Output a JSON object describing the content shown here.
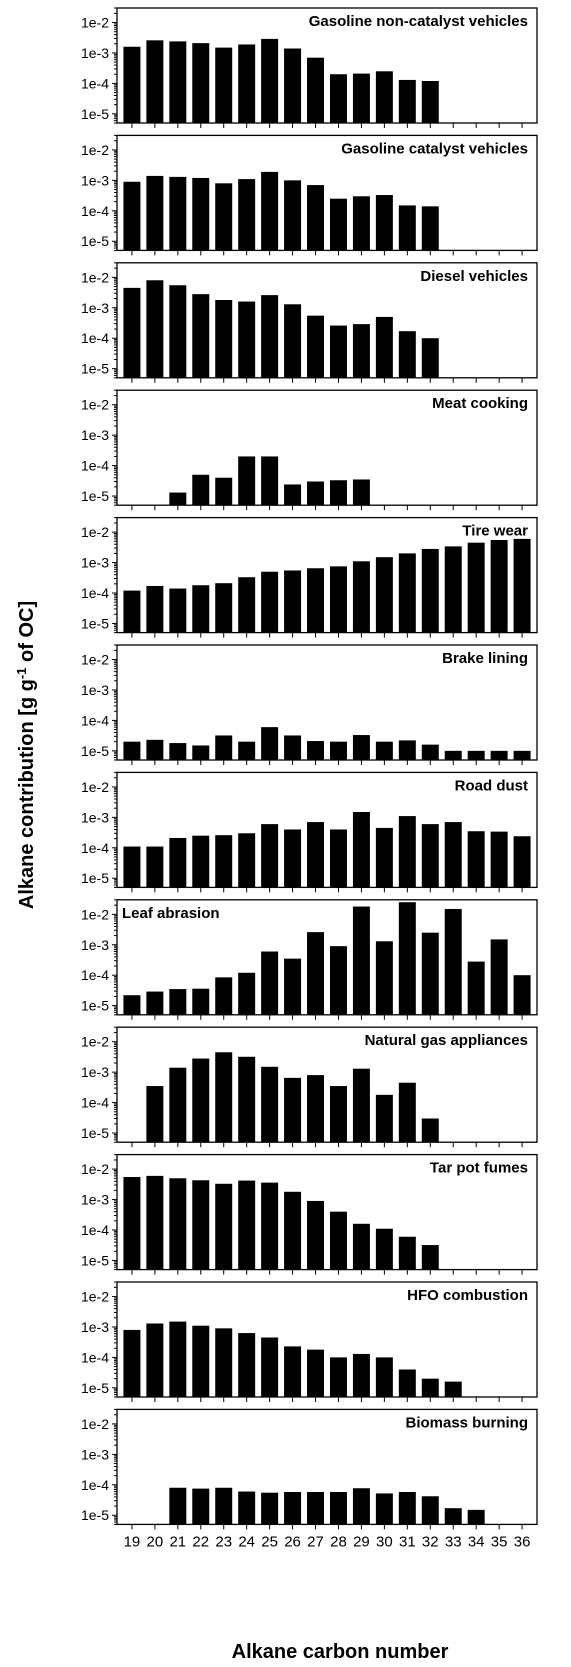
{
  "figure": {
    "ylabel_parts": [
      "Alkane contribution [g g",
      "-1",
      " of OC]"
    ],
    "xlabel": "Alkane carbon number"
  },
  "chart_data": {
    "type": "bar",
    "categories": [
      "19",
      "20",
      "21",
      "22",
      "23",
      "24",
      "25",
      "26",
      "27",
      "28",
      "29",
      "30",
      "31",
      "32",
      "33",
      "34",
      "35",
      "36"
    ],
    "y_scale": "log",
    "ylim": [
      5e-06,
      0.03
    ],
    "ytick_values": [
      1e-05,
      0.0001,
      0.001,
      0.01
    ],
    "ytick_labels": [
      "1e-5",
      "1e-4",
      "1e-3",
      "1e-2"
    ],
    "grid": false,
    "panels": [
      {
        "title": "Gasoline non-catalyst vehicles",
        "title_position": "top-right",
        "values": [
          0.0016,
          0.0026,
          0.0024,
          0.0021,
          0.0015,
          0.0019,
          0.0029,
          0.0014,
          0.0007,
          0.0002,
          0.00021,
          0.00025,
          0.00013,
          0.00012,
          null,
          null,
          null,
          null
        ]
      },
      {
        "title": "Gasoline catalyst vehicles",
        "title_position": "top-right",
        "values": [
          0.0009,
          0.0014,
          0.0013,
          0.0012,
          0.0008,
          0.0011,
          0.0019,
          0.001,
          0.0007,
          0.00025,
          0.0003,
          0.00033,
          0.00015,
          0.00014,
          null,
          null,
          null,
          null
        ]
      },
      {
        "title": "Diesel vehicles",
        "title_position": "top-right",
        "values": [
          0.0045,
          0.008,
          0.0055,
          0.0028,
          0.0018,
          0.0016,
          0.0026,
          0.0013,
          0.00055,
          0.00026,
          0.00029,
          0.0005,
          0.00017,
          0.0001,
          null,
          null,
          null,
          null
        ]
      },
      {
        "title": "Meat cooking",
        "title_position": "top-right",
        "values": [
          null,
          null,
          1.3e-05,
          5e-05,
          4e-05,
          0.0002,
          0.0002,
          2.4e-05,
          3e-05,
          3.3e-05,
          3.5e-05,
          null,
          null,
          null,
          null,
          null,
          null,
          null
        ]
      },
      {
        "title": "Tire wear",
        "title_position": "top-right",
        "values": [
          0.00012,
          0.00017,
          0.00014,
          0.00018,
          0.00021,
          0.00033,
          0.0005,
          0.00055,
          0.00065,
          0.00075,
          0.0011,
          0.0015,
          0.002,
          0.0028,
          0.0034,
          0.0045,
          0.0055,
          0.006
        ]
      },
      {
        "title": "Brake lining",
        "title_position": "top-right",
        "values": [
          2e-05,
          2.3e-05,
          1.8e-05,
          1.5e-05,
          3.2e-05,
          2e-05,
          6e-05,
          3.2e-05,
          2.1e-05,
          2e-05,
          3.3e-05,
          2e-05,
          2.2e-05,
          1.6e-05,
          1e-05,
          1e-05,
          1e-05,
          1e-05
        ]
      },
      {
        "title": "Road dust",
        "title_position": "top-right",
        "values": [
          0.00011,
          0.00011,
          0.00021,
          0.00025,
          0.00026,
          0.0003,
          0.0006,
          0.0004,
          0.0007,
          0.0004,
          0.0015,
          0.00045,
          0.0011,
          0.0006,
          0.0007,
          0.00035,
          0.00034,
          0.00024
        ]
      },
      {
        "title": "Leaf abrasion",
        "title_position": "top-left",
        "values": [
          2.2e-05,
          2.9e-05,
          3.5e-05,
          3.6e-05,
          8.5e-05,
          0.00012,
          0.0006,
          0.00035,
          0.0026,
          0.0009,
          0.018,
          0.0013,
          0.025,
          0.0025,
          0.015,
          0.00028,
          0.0015,
          0.0001
        ]
      },
      {
        "title": "Natural gas appliances",
        "title_position": "top-right",
        "values": [
          null,
          0.00035,
          0.0014,
          0.0028,
          0.0045,
          0.0032,
          0.0015,
          0.00065,
          0.0008,
          0.00035,
          0.0013,
          0.00018,
          0.00045,
          3e-05,
          null,
          null,
          null,
          null
        ]
      },
      {
        "title": "Tar pot fumes",
        "title_position": "top-right",
        "values": [
          0.0055,
          0.006,
          0.005,
          0.0043,
          0.0033,
          0.0042,
          0.0036,
          0.0018,
          0.0009,
          0.0004,
          0.00016,
          0.00011,
          6e-05,
          3.2e-05,
          null,
          null,
          null,
          null
        ]
      },
      {
        "title": "HFO combustion",
        "title_position": "top-right",
        "values": [
          0.0008,
          0.0013,
          0.0015,
          0.0011,
          0.0009,
          0.00063,
          0.00045,
          0.00023,
          0.00018,
          0.0001,
          0.00013,
          0.0001,
          4e-05,
          2e-05,
          1.6e-05,
          null,
          null,
          null
        ]
      },
      {
        "title": "Biomass burning",
        "title_position": "top-right",
        "values": [
          null,
          null,
          8e-05,
          7.5e-05,
          8e-05,
          6e-05,
          5.5e-05,
          5.8e-05,
          5.8e-05,
          5.8e-05,
          7.7e-05,
          5.2e-05,
          5.8e-05,
          4.2e-05,
          1.7e-05,
          1.5e-05,
          null,
          null
        ]
      }
    ]
  }
}
